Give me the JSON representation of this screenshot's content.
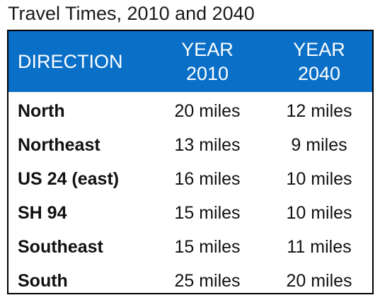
{
  "title": "Travel Times, 2010 and 2040",
  "table": {
    "header": [
      [
        "DIRECTION"
      ],
      [
        "YEAR",
        "2010"
      ],
      [
        "YEAR",
        "2040"
      ]
    ],
    "rows": [
      [
        "North",
        "20 miles",
        "12 miles"
      ],
      [
        "Northeast",
        "13 miles",
        "9 miles"
      ],
      [
        "US 24 (east)",
        "16 miles",
        "10 miles"
      ],
      [
        "SH 94",
        "15 miles",
        "10 miles"
      ],
      [
        "Southeast",
        "15 miles",
        "11 miles"
      ],
      [
        "South",
        "25 miles",
        "20 miles"
      ]
    ]
  }
}
